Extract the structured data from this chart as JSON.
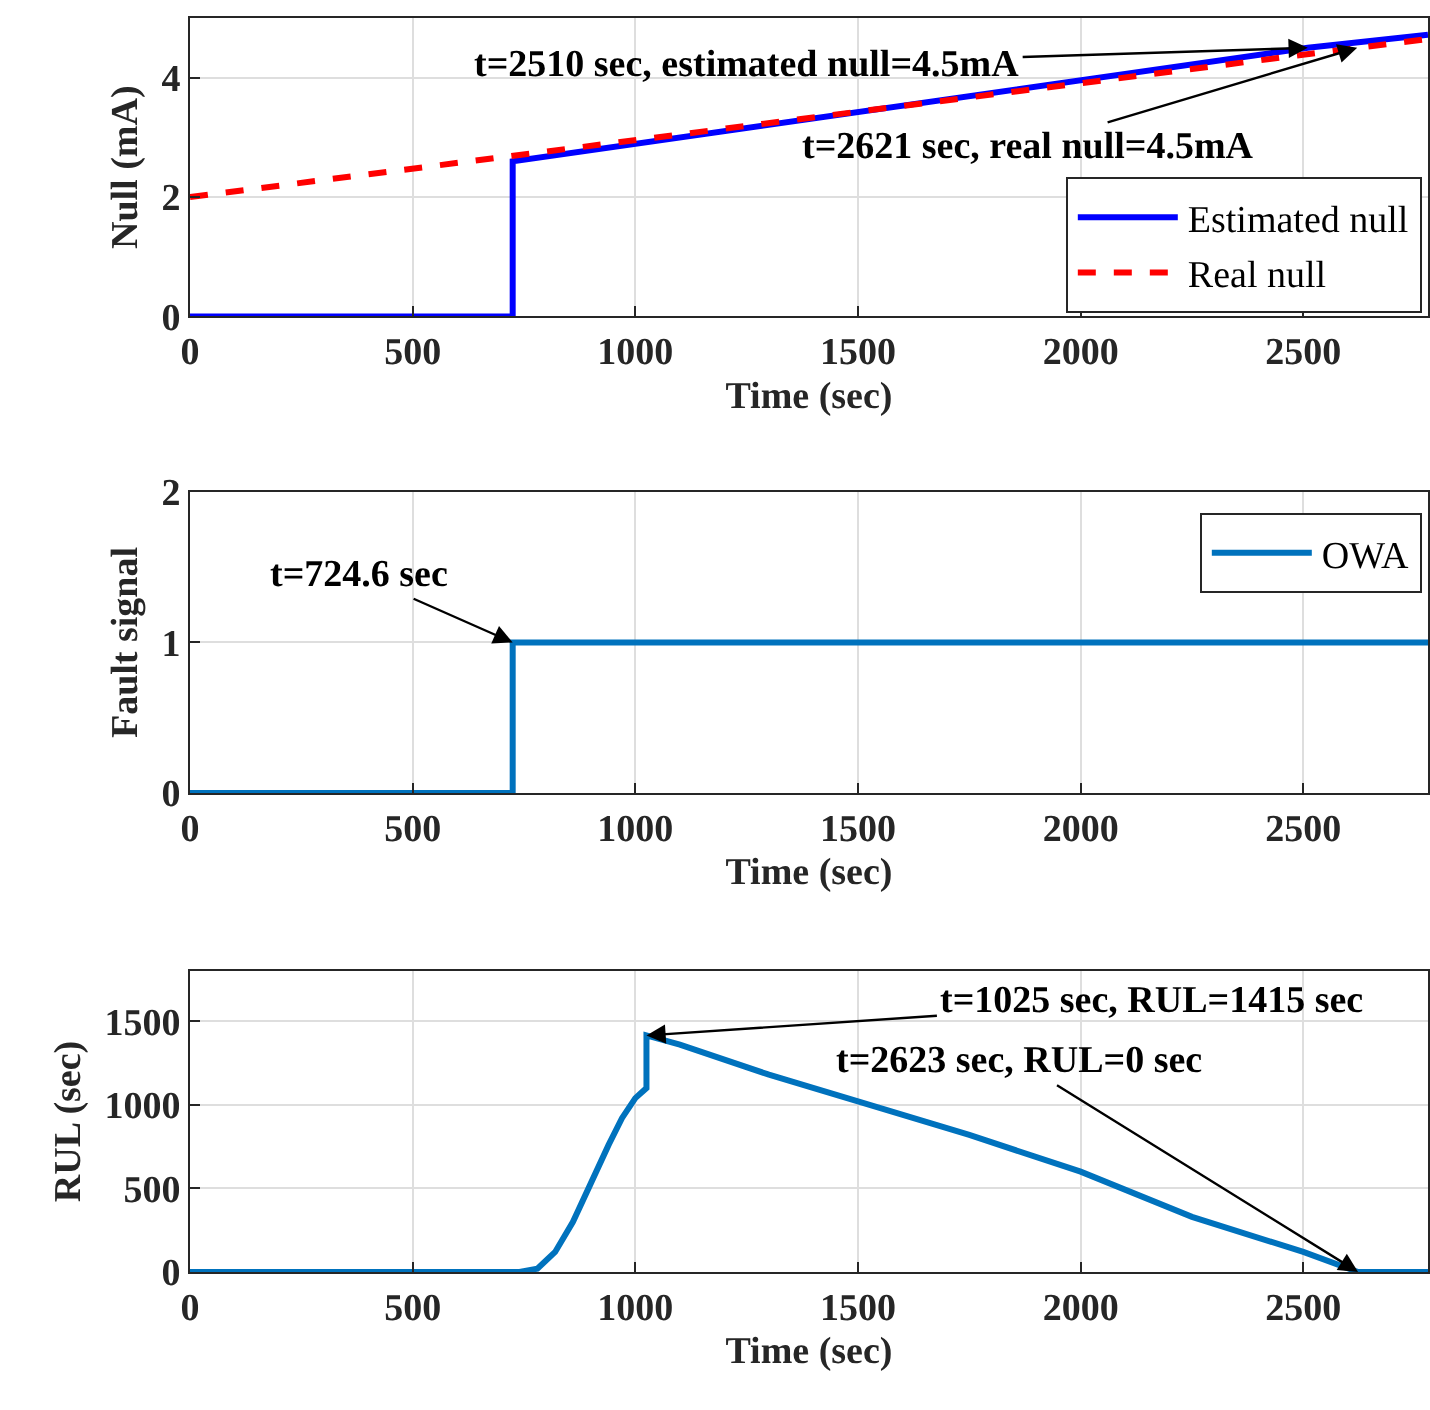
{
  "chart_data": [
    {
      "type": "line",
      "xlabel": "Time (sec)",
      "ylabel": "Null (mA)",
      "xlim": [
        0,
        2780
      ],
      "xticks": [
        0,
        500,
        1000,
        1500,
        2000,
        2500
      ],
      "ylim": [
        0,
        5
      ],
      "yticks": [
        0,
        2,
        4
      ],
      "grid": true,
      "legend": "bottom right",
      "series": [
        {
          "name": "Estimated null",
          "color": "#0000ff",
          "line_style": "solid",
          "x": [
            0,
            724.6,
            724.6,
            2510,
            2780
          ],
          "values": [
            0,
            0,
            2.6,
            4.5,
            4.72
          ]
        },
        {
          "name": "Real null",
          "color": "#ff0000",
          "line_style": "dashed",
          "x": [
            0,
            2621,
            2780
          ],
          "values": [
            2,
            4.5,
            4.65
          ]
        }
      ],
      "annotations": [
        {
          "text": "t=2510 sec, estimated null=4.5mA",
          "x": 2510,
          "y": 4.5
        },
        {
          "text": "t=2621 sec, real null=4.5mA",
          "x": 2621,
          "y": 4.5
        }
      ]
    },
    {
      "type": "line",
      "xlabel": "Time (sec)",
      "ylabel": "Fault signal",
      "xlim": [
        0,
        2780
      ],
      "xticks": [
        0,
        500,
        1000,
        1500,
        2000,
        2500
      ],
      "ylim": [
        0,
        2
      ],
      "yticks": [
        0,
        1,
        2
      ],
      "grid": true,
      "legend": "top right",
      "series": [
        {
          "name": "OWA",
          "color": "#0072bd",
          "line_style": "solid",
          "x": [
            0,
            724.6,
            724.6,
            2780
          ],
          "values": [
            0,
            0,
            1,
            1
          ]
        }
      ],
      "annotations": [
        {
          "text": "t=724.6 sec",
          "x": 724.6,
          "y": 1
        }
      ]
    },
    {
      "type": "line",
      "xlabel": "Time (sec)",
      "ylabel": "RUL (sec)",
      "xlim": [
        0,
        2780
      ],
      "xticks": [
        0,
        500,
        1000,
        1500,
        2000,
        2500
      ],
      "ylim": [
        0,
        1800
      ],
      "yticks": [
        0,
        500,
        1000,
        1500
      ],
      "grid": true,
      "legend": false,
      "series": [
        {
          "color": "#0072bd",
          "line_style": "solid",
          "x": [
            0,
            740,
            780,
            820,
            860,
            900,
            940,
            970,
            1000,
            1025,
            1025,
            1100,
            1300,
            1500,
            1750,
            2000,
            2250,
            2500,
            2623,
            2780
          ],
          "values": [
            0,
            0,
            20,
            120,
            300,
            530,
            760,
            920,
            1040,
            1100,
            1415,
            1360,
            1180,
            1020,
            820,
            600,
            330,
            120,
            0,
            0
          ]
        }
      ],
      "annotations": [
        {
          "text": "t=1025 sec, RUL=1415 sec",
          "x": 1025,
          "y": 1415
        },
        {
          "text": "t=2623 sec, RUL=0 sec",
          "x": 2623,
          "y": 0
        }
      ]
    }
  ]
}
